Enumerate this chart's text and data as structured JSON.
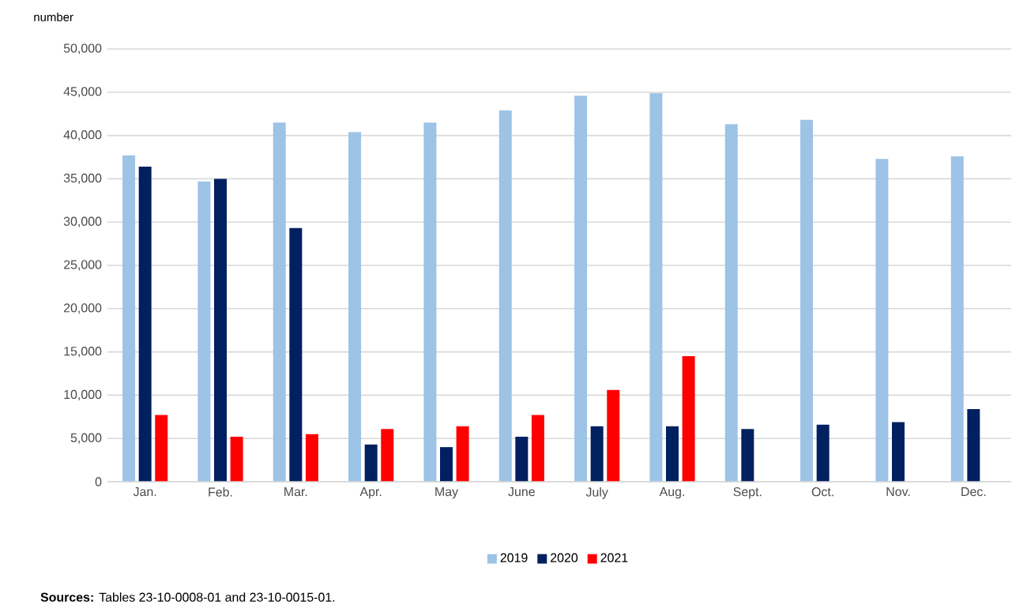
{
  "chart_data": {
    "type": "bar",
    "ylabel": "number",
    "categories": [
      "Jan.",
      "Feb.",
      "Mar.",
      "Apr.",
      "May",
      "June",
      "July",
      "Aug.",
      "Sept.",
      "Oct.",
      "Nov.",
      "Dec."
    ],
    "series": [
      {
        "name": "2019",
        "color": "#9dc3e6",
        "values": [
          37700,
          34700,
          41500,
          40400,
          41500,
          42900,
          44600,
          44900,
          41300,
          41800,
          37300,
          37600
        ]
      },
      {
        "name": "2020",
        "color": "#002060",
        "values": [
          36400,
          35000,
          29300,
          4300,
          4000,
          5200,
          6400,
          6400,
          6100,
          6600,
          6900,
          8400
        ]
      },
      {
        "name": "2021",
        "color": "#ff0000",
        "values": [
          7700,
          5200,
          5500,
          6100,
          6400,
          7700,
          10600,
          14500,
          null,
          null,
          null,
          null
        ]
      }
    ],
    "ylim": [
      0,
      50000
    ],
    "yticks": [
      {
        "value": 0,
        "label": "0"
      },
      {
        "value": 5000,
        "label": "5,000"
      },
      {
        "value": 10000,
        "label": "10,000"
      },
      {
        "value": 15000,
        "label": "15,000"
      },
      {
        "value": 20000,
        "label": "20,000"
      },
      {
        "value": 25000,
        "label": "25,000"
      },
      {
        "value": 30000,
        "label": "30,000"
      },
      {
        "value": 35000,
        "label": "35,000"
      },
      {
        "value": 40000,
        "label": "40,000"
      },
      {
        "value": 45000,
        "label": "45,000"
      },
      {
        "value": 50000,
        "label": "50,000"
      }
    ],
    "grid": "y",
    "legend": "bottom",
    "annotations": [
      "**Sources:** Tables 23-10-0008-01  and 23-10-0015-01."
    ]
  }
}
